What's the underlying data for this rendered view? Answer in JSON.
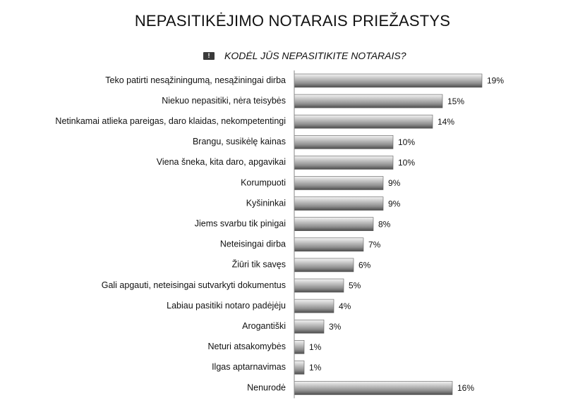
{
  "chart_data": {
    "type": "bar",
    "orientation": "horizontal",
    "title": "NEPASITIKĖJIMO NOTARAIS PRIEŽASTYS",
    "series": [
      {
        "name": "KODĖL JŪS NEPASITIKITE NOTARAIS?",
        "color": "#8c8c8c",
        "values": [
          19,
          15,
          14,
          10,
          10,
          9,
          9,
          8,
          7,
          6,
          5,
          4,
          3,
          1,
          1,
          16
        ],
        "value_labels": [
          "19%",
          "15%",
          "14%",
          "10%",
          "10%",
          "9%",
          "9%",
          "8%",
          "7%",
          "6%",
          "5%",
          "4%",
          "3%",
          "1%",
          "1%",
          "16%"
        ]
      }
    ],
    "categories": [
      "Teko patirti nesąžiningumą, nesąžiningai dirba",
      "Niekuo nepasitiki, nėra teisybės",
      "Netinkamai atlieka pareigas, daro klaidas, nekompetentingi",
      "Brangu, susikėlę kainas",
      "Viena šneka, kita daro, apgavikai",
      "Korumpuoti",
      "Kyšininkai",
      "Jiems svarbu tik pinigai",
      "Neteisingai dirba",
      "Žiūri tik savęs",
      "Gali apgauti, neteisingai sutvarkyti dokumentus",
      "Labiau pasitiki notaro padėjėju",
      "Arogantiški",
      "Neturi atsakomybės",
      "Ilgas aptarnavimas",
      "Nenurodė"
    ],
    "xlim": [
      0,
      20
    ],
    "grid": false,
    "legend_position": "top",
    "legend_icon": "!"
  }
}
